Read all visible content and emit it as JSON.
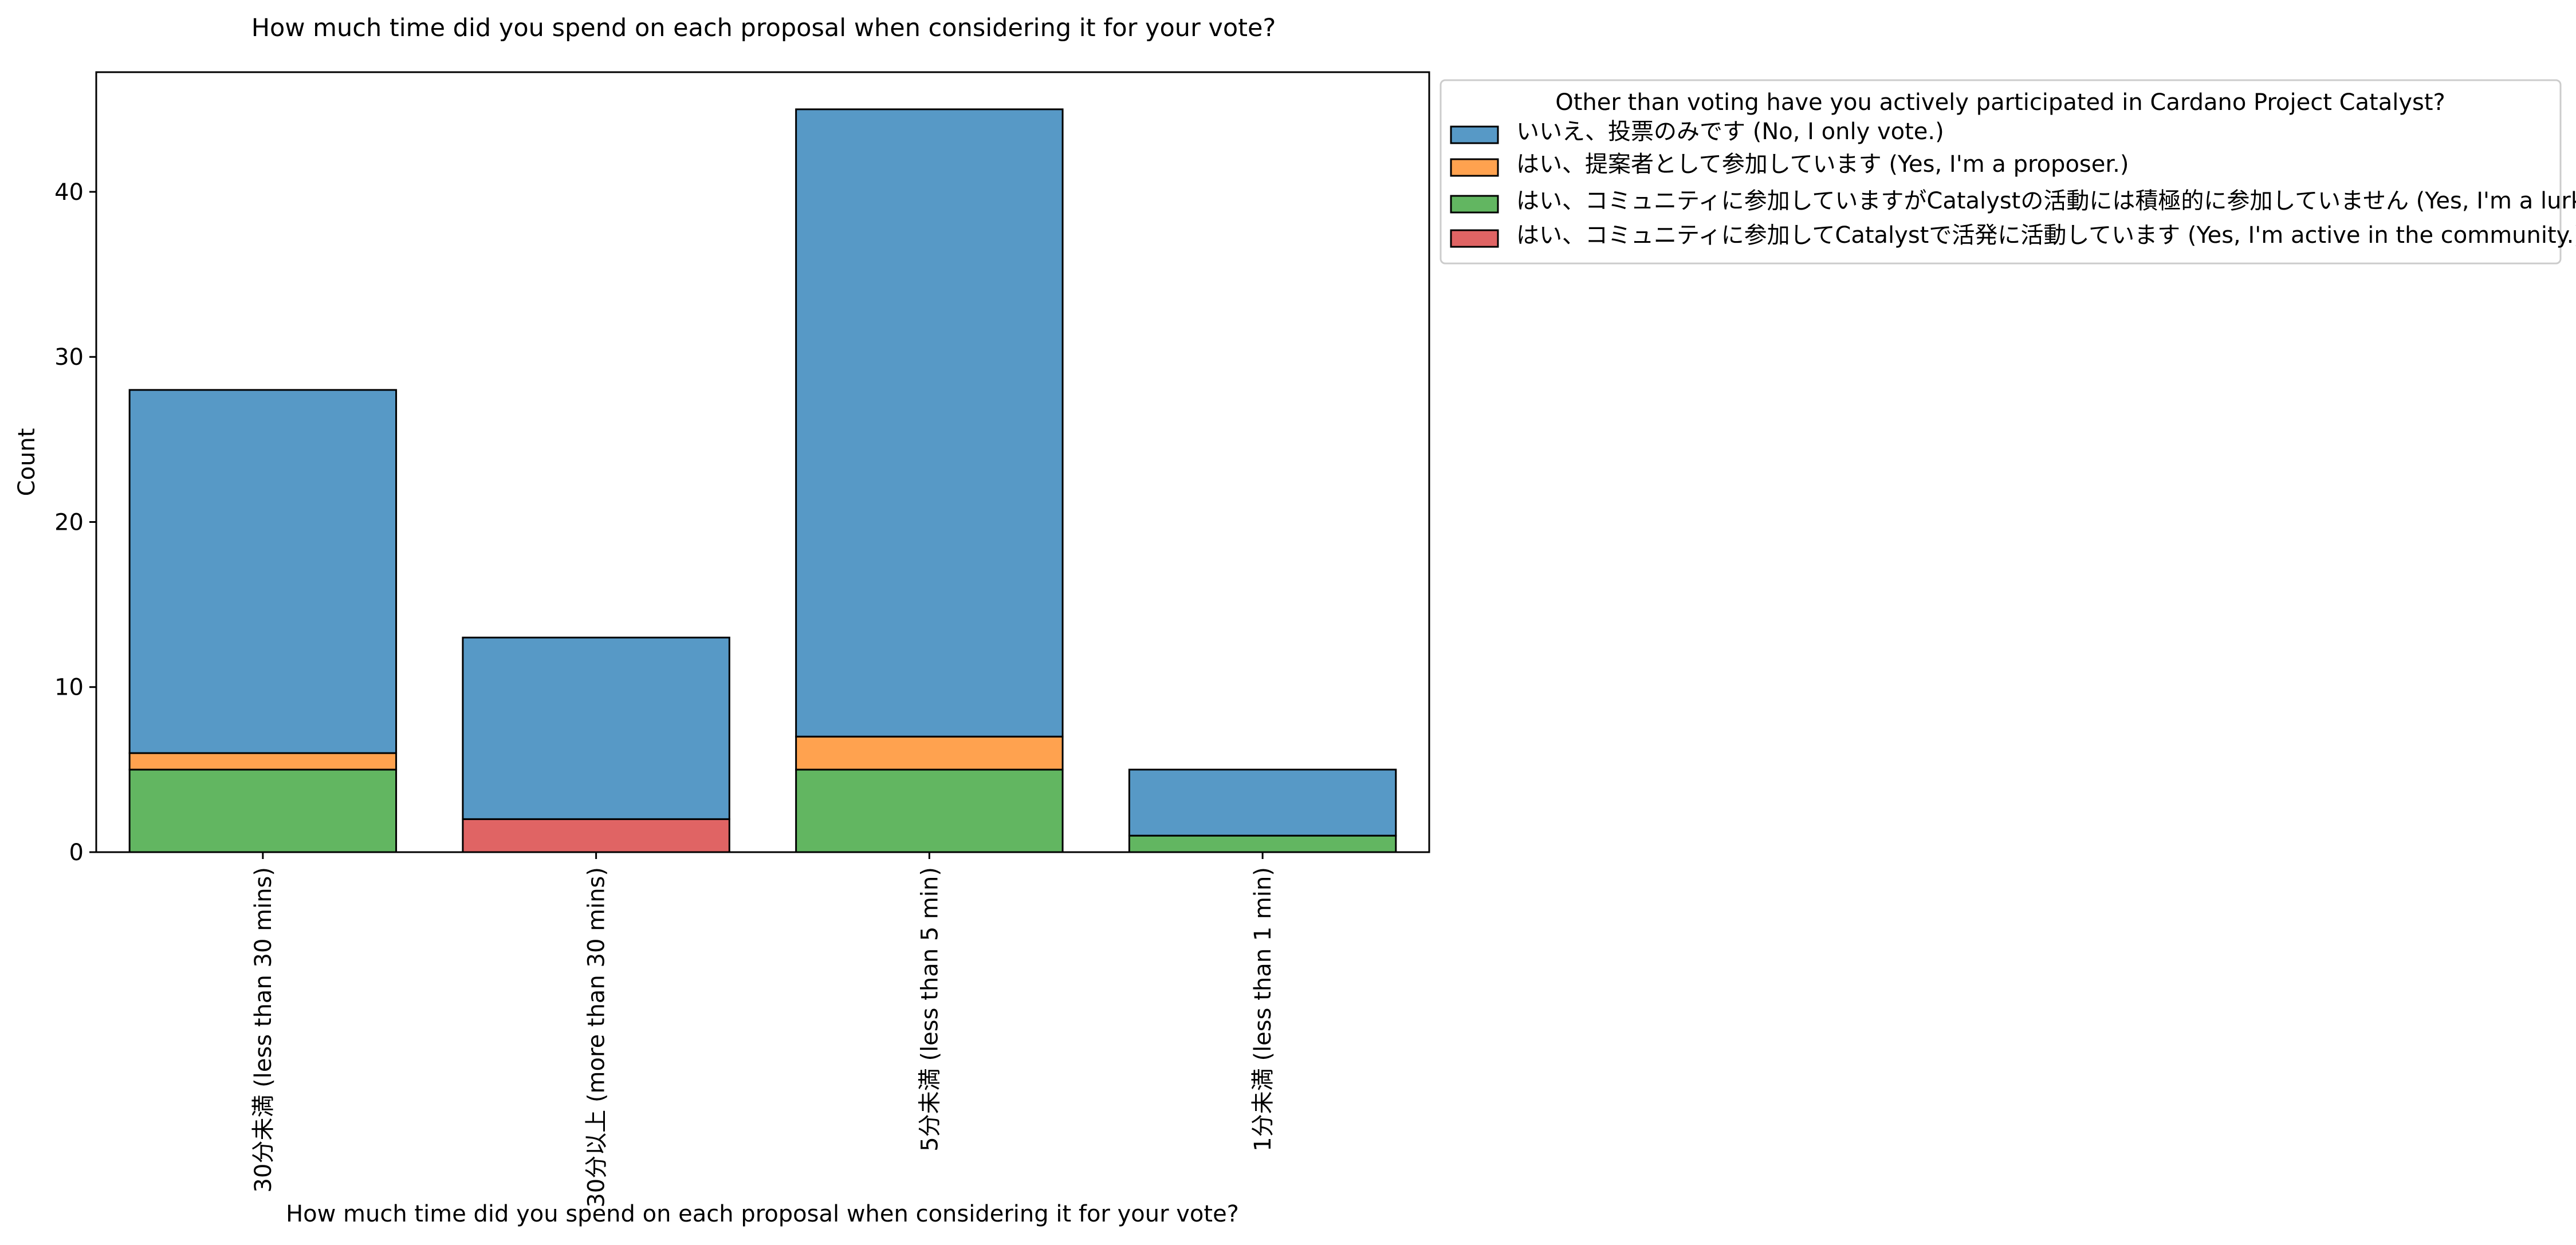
{
  "chart_data": {
    "type": "bar",
    "stacked": true,
    "title": "How much time did you spend on each proposal when considering it for your vote?",
    "xlabel": "How much time did you spend on each proposal when considering it for your vote?",
    "ylabel": "Count",
    "ylim": [
      0,
      47.25
    ],
    "yticks": [
      0,
      10,
      20,
      30,
      40
    ],
    "grid": false,
    "categories": [
      "30分未満 (less than 30 mins)",
      "30分以上 (more than 30 mins)",
      "5分未満 (less than 5 min)",
      "1分未満 (less than 1 min)"
    ],
    "legend": {
      "title": "Other than voting have you actively participated in Cardano Project Catalyst?",
      "placement": "outside-top-right"
    },
    "series": [
      {
        "name": "いいえ、投票のみです (No, I only vote.)",
        "color": "#5799c6",
        "values": [
          22,
          11,
          38,
          4
        ]
      },
      {
        "name": "はい、提案者として参加しています (Yes, I'm a proposer.)",
        "color": "#ffa24f",
        "values": [
          1,
          0,
          2,
          0
        ]
      },
      {
        "name": "はい、コミュニティに参加していますがCatalystの活動には積極的に参加していません (Yes, I'm a lurker in the community)",
        "color": "#62b661",
        "values": [
          5,
          0,
          5,
          1
        ]
      },
      {
        "name": "はい、コミュニティに参加してCatalystで活発に活動しています (Yes, I'm active in the community.)",
        "color": "#e06464",
        "values": [
          0,
          2,
          0,
          0
        ]
      }
    ]
  }
}
